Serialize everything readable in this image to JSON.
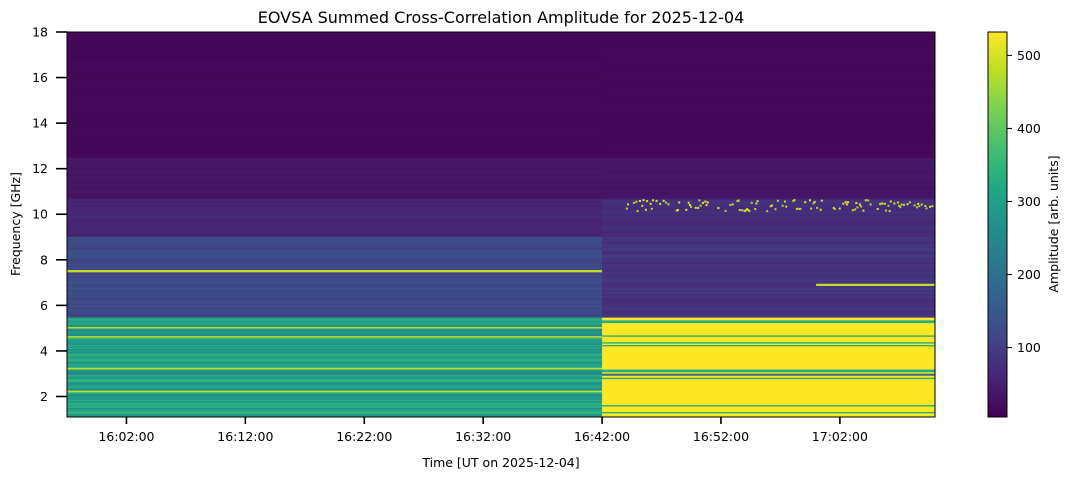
{
  "chart_data": {
    "type": "heatmap",
    "title": "EOVSA Summed Cross-Correlation Amplitude for 2025-12-04",
    "xlabel": "Time [UT on 2025-12-04]",
    "ylabel": "Frequency [GHz]",
    "colorbar_label": "Amplitude [arb. units]",
    "colormap": "viridis",
    "x_range": [
      "15:57:00",
      "17:10:00"
    ],
    "x_ticks": [
      "16:02:00",
      "16:12:00",
      "16:22:00",
      "16:32:00",
      "16:42:00",
      "16:52:00",
      "17:02:00"
    ],
    "y_range": [
      1.1,
      18
    ],
    "y_ticks": [
      2,
      4,
      6,
      8,
      10,
      12,
      14,
      16,
      18
    ],
    "color_range": [
      5,
      532
    ],
    "colorbar_ticks": [
      100,
      200,
      300,
      400,
      500
    ],
    "features": [
      {
        "description": "low-frequency band 1.1–5.5 GHz, amplitude ~250–350 before 16:42",
        "t_start": "15:57:00",
        "t_end": "16:42:00",
        "f_low": 1.1,
        "f_high": 5.5,
        "amplitude": 300
      },
      {
        "description": "saturated low-frequency band after 16:42",
        "t_start": "16:42:00",
        "t_end": "17:10:00",
        "f_low": 1.1,
        "f_high": 5.5,
        "amplitude": 530
      },
      {
        "description": "RFI line near 7.5 GHz",
        "t_start": "15:57:00",
        "t_end": "16:42:00",
        "f_low": 7.45,
        "f_high": 7.55,
        "amplitude": 480
      },
      {
        "description": "RFI line near 6.9 GHz",
        "t_start": "17:00:00",
        "t_end": "17:10:00",
        "f_low": 6.85,
        "f_high": 6.95,
        "amplitude": 480
      },
      {
        "description": "intermittent bursts near 10.3 GHz",
        "t_start": "16:44:00",
        "t_end": "17:10:00",
        "f_low": 10.1,
        "f_high": 10.6,
        "amplitude": 450
      }
    ]
  }
}
